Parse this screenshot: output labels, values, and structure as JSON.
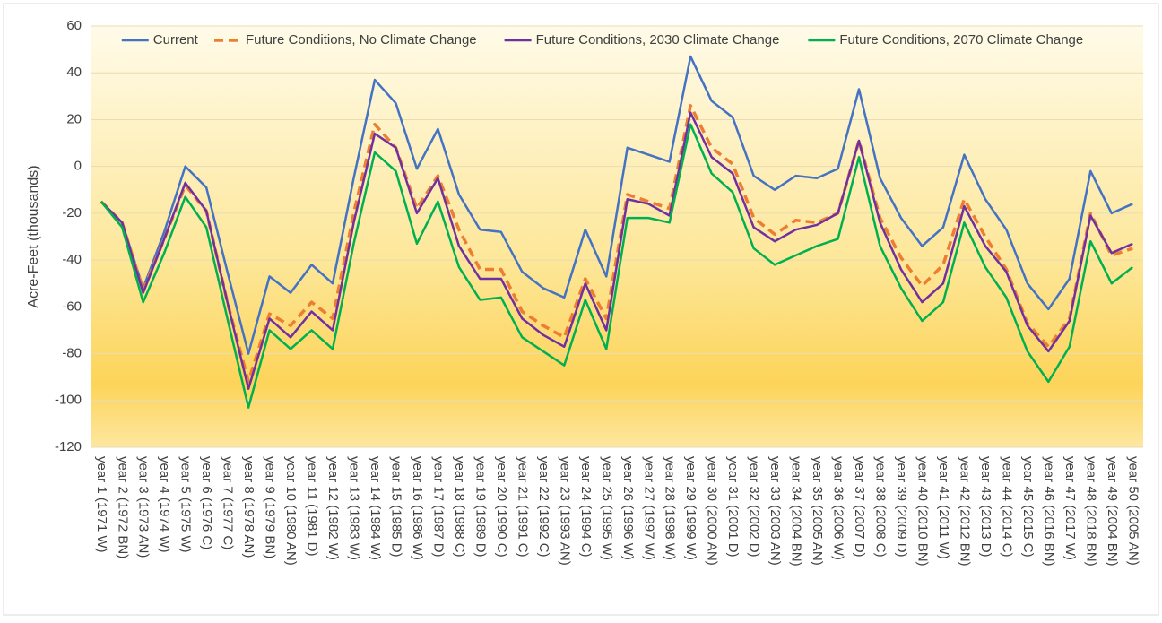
{
  "chart_data": {
    "type": "line",
    "y_label": "Acre-Feet (thousands)",
    "categories": [
      "year 1 (1971 W)",
      "year 2 (1972 BN)",
      "year 3 (1973 AN)",
      "year 4 (1974 W)",
      "year 5 (1975 W)",
      "year 6 (1976 C)",
      "year 7 (1977 C)",
      "year 8 (1978 AN)",
      "year 9 (1979 BN)",
      "year 10 (1980 AN)",
      "year 11 (1981 D)",
      "year 12 (1982 W)",
      "year 13 (1983 W)",
      "year 14 (1984 W)",
      "year 15 (1985 D)",
      "year 16 (1986 W)",
      "year 17 (1987 D)",
      "year 18 (1988 C)",
      "year 19 (1989 D)",
      "year 20 (1990 C)",
      "year 21 (1991 C)",
      "year 22 (1992 C)",
      "year 23 (1993 AN)",
      "year 24 (1994 C)",
      "year 25 (1995 W)",
      "year 26 (1996 W)",
      "year 27 (1997 W)",
      "year 28 (1998 W)",
      "year 29 (1999 W)",
      "year 30 (2000 AN)",
      "year 31 (2001 D)",
      "year 32 (2002 D)",
      "year 33 (2003 AN)",
      "year 34 (2004 BN)",
      "year 35 (2005 AN)",
      "year 36 (2006 W)",
      "year 37 (2007 D)",
      "year 38 (2008 C)",
      "year 39 (2009 D)",
      "year 40 (2010 BN)",
      "year 41 (2011 W)",
      "year 42 (2012 BN)",
      "year 43 (2013 D)",
      "year 44 (2014 C)",
      "year 45 (2015 C)",
      "year 46 (2016 BN)",
      "year 47 (2017 W)",
      "year 48 (2018 BN)",
      "year 49 (2004 BN)",
      "year 50 (2005 AN)"
    ],
    "series": [
      {
        "name": "Current",
        "color": "#4472c4",
        "dashed": false,
        "values": [
          -15,
          -24,
          -52,
          -28,
          0,
          -9,
          -45,
          -80,
          -47,
          -54,
          -42,
          -50,
          -5,
          37,
          27,
          -1,
          16,
          -12,
          -27,
          -28,
          -45,
          -52,
          -56,
          -27,
          -47,
          8,
          5,
          2,
          47,
          28,
          21,
          -4,
          -10,
          -4,
          -5,
          -1,
          33,
          -5,
          -22,
          -34,
          -26,
          5,
          -14,
          -27,
          -50,
          -61,
          -48,
          -2,
          -20,
          -16
        ]
      },
      {
        "name": "Future Conditions, No Climate Change",
        "color": "#ed7d31",
        "dashed": true,
        "values": [
          -15,
          -24,
          -53,
          -31,
          -8,
          -19,
          -58,
          -92,
          -63,
          -68,
          -58,
          -65,
          -20,
          18,
          8,
          -18,
          -4,
          -27,
          -44,
          -44,
          -62,
          -68,
          -73,
          -48,
          -65,
          -12,
          -15,
          -18,
          26,
          8,
          1,
          -22,
          -29,
          -23,
          -24,
          -20,
          11,
          -22,
          -39,
          -51,
          -42,
          -14,
          -30,
          -44,
          -67,
          -77,
          -65,
          -20,
          -38,
          -35
        ]
      },
      {
        "name": "Future Conditions, 2030 Climate Change",
        "color": "#7030a0",
        "dashed": false,
        "values": [
          -15,
          -24,
          -54,
          -31,
          -7,
          -19,
          -58,
          -95,
          -65,
          -73,
          -62,
          -70,
          -24,
          14,
          8,
          -20,
          -5,
          -34,
          -48,
          -48,
          -65,
          -72,
          -77,
          -50,
          -70,
          -14,
          -16,
          -21,
          23,
          4,
          -3,
          -26,
          -32,
          -27,
          -25,
          -20,
          11,
          -24,
          -44,
          -58,
          -50,
          -17,
          -34,
          -45,
          -68,
          -79,
          -66,
          -21,
          -37,
          -33
        ]
      },
      {
        "name": "Future Conditions, 2070 Climate Change",
        "color": "#00b050",
        "dashed": false,
        "values": [
          -15,
          -26,
          -58,
          -37,
          -13,
          -26,
          -65,
          -103,
          -70,
          -78,
          -70,
          -78,
          -33,
          6,
          -2,
          -33,
          -15,
          -43,
          -57,
          -56,
          -73,
          -79,
          -85,
          -57,
          -78,
          -22,
          -22,
          -24,
          18,
          -3,
          -11,
          -35,
          -42,
          -38,
          -34,
          -31,
          4,
          -34,
          -52,
          -66,
          -58,
          -24,
          -43,
          -56,
          -79,
          -92,
          -77,
          -32,
          -50,
          -43
        ]
      }
    ],
    "ylim": [
      -120,
      60
    ],
    "yticks": [
      -120,
      -100,
      -80,
      -60,
      -40,
      -20,
      0,
      20,
      40,
      60
    ],
    "grid": true,
    "legend": "top"
  }
}
